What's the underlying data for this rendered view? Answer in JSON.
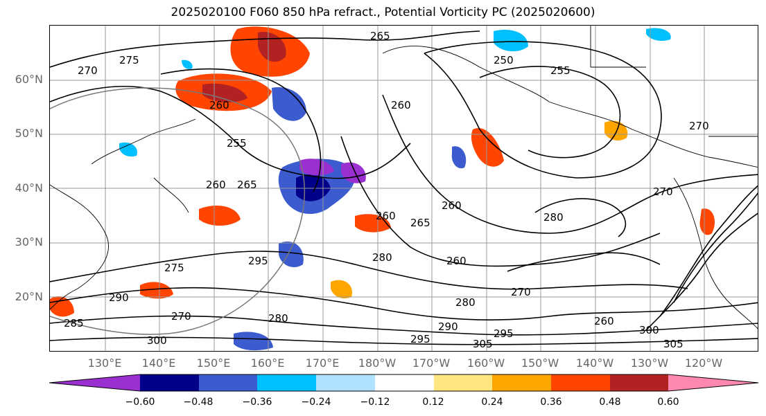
{
  "title": "2025020100 F060 850 hPa refract., Potential Vorticity PC (2025020600)",
  "lat_labels": [
    "60°N",
    "50°N",
    "40°N",
    "30°N",
    "20°N"
  ],
  "lon_labels": [
    "130°E",
    "140°E",
    "150°E",
    "160°E",
    "170°E",
    "180°W",
    "170°W",
    "160°W",
    "150°W",
    "140°W",
    "130°W",
    "120°W"
  ],
  "colorbar": {
    "ticks": [
      "−0.60",
      "−0.48",
      "−0.36",
      "−0.24",
      "−0.12",
      "0.12",
      "0.24",
      "0.36",
      "0.48",
      "0.60"
    ],
    "colors": [
      "#9b30d0",
      "#00008b",
      "#3b5bcf",
      "#00bfff",
      "#b0e2ff",
      "#ffffff",
      "#ffe680",
      "#ffa500",
      "#ff4500",
      "#b22222",
      "#ff88b0"
    ]
  },
  "contour_labels": [
    "265",
    "275",
    "270",
    "260",
    "255",
    "260",
    "265",
    "250",
    "255",
    "270",
    "270",
    "260",
    "260",
    "265",
    "260",
    "280",
    "280",
    "260",
    "275",
    "295",
    "290",
    "270",
    "280",
    "295",
    "300",
    "305",
    "260",
    "300",
    "305",
    "290",
    "280",
    "270",
    "285",
    "295"
  ]
}
